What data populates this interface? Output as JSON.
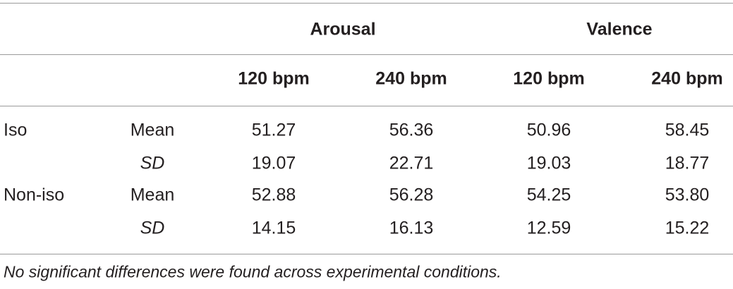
{
  "header": {
    "groups": [
      "Arousal",
      "Valence"
    ],
    "columns": [
      "120 bpm",
      "240 bpm",
      "120 bpm",
      "240 bpm"
    ]
  },
  "table": {
    "rows": [
      {
        "group": "Iso",
        "stat": "Mean",
        "values": [
          "51.27",
          "56.36",
          "50.96",
          "58.45"
        ]
      },
      {
        "stat": "SD",
        "values": [
          "19.07",
          "22.71",
          "19.03",
          "18.77"
        ]
      },
      {
        "group": "Non-iso",
        "stat": "Mean",
        "values": [
          "52.88",
          "56.28",
          "54.25",
          "53.80"
        ]
      },
      {
        "stat": "SD",
        "values": [
          "14.15",
          "16.13",
          "12.59",
          "15.22"
        ]
      }
    ]
  },
  "footnote": "No significant differences were found across experimental conditions."
}
